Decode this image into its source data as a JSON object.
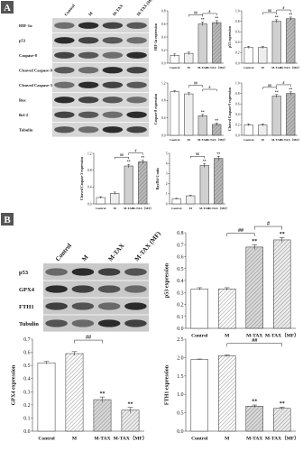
{
  "panel_labels": [
    "A",
    "B"
  ],
  "blots": [
    {
      "columns": [
        "Control",
        "M",
        "M-TAX",
        "M-TAX (MF)"
      ],
      "rows": [
        "HIF-1α",
        "p53",
        "Caspase-8",
        "Cleaved Caspase-9",
        "Cleaved Caspase-3",
        "Bax",
        "Bcl-2",
        "Tubulin"
      ]
    },
    {
      "columns": [
        "Control",
        "M",
        "M-TAX",
        "M-TAX (MF)"
      ],
      "rows": [
        "p53",
        "GPX4",
        "FTH1",
        "Tubulin"
      ]
    }
  ],
  "chart_data": [
    {
      "type": "bar",
      "ylabel": "HIF-1α expression",
      "categories": [
        "Control",
        "M",
        "M-TAX",
        "M-TAX（MF）"
      ],
      "values": [
        0.12,
        0.15,
        0.6,
        0.62
      ],
      "errors": [
        0.02,
        0.02,
        0.03,
        0.03
      ],
      "colors": [
        "#ffffff",
        "#eeeeee",
        "#d0d0d0",
        "#b8b8b8"
      ],
      "hatch": [
        false,
        false,
        false,
        true
      ],
      "ylim": [
        0,
        0.8
      ],
      "yticks": [
        {
          "value": 0,
          "label": "0.0"
        },
        {
          "value": 0.2,
          "label": "0.2"
        },
        {
          "value": 0.4,
          "label": "0.4"
        },
        {
          "value": 0.6,
          "label": "0.6"
        },
        {
          "value": 0.8,
          "label": "0.8"
        }
      ],
      "bar_labels": [
        null,
        null,
        "**",
        "**"
      ],
      "comparisons": [
        {
          "label": "##",
          "pair": [
            "M",
            "M-TAX"
          ]
        },
        {
          "label": "#",
          "pair": [
            "M-TAX",
            "M-TAX（MF）"
          ]
        }
      ]
    },
    {
      "type": "bar",
      "ylabel": "p53 expression",
      "categories": [
        "Control",
        "M",
        "M-TAX",
        "M-TAX（MF）"
      ],
      "values": [
        0.3,
        0.3,
        0.8,
        0.85
      ],
      "errors": [
        0.02,
        0.02,
        0.03,
        0.03
      ],
      "colors": [
        "#ffffff",
        "#eeeeee",
        "#d0d0d0",
        "#b8b8b8"
      ],
      "hatch": [
        false,
        false,
        false,
        true
      ],
      "ylim": [
        0,
        1
      ],
      "yticks": [
        {
          "value": 0,
          "label": "0.0"
        },
        {
          "value": 0.2,
          "label": "0.2"
        },
        {
          "value": 0.4,
          "label": "0.4"
        },
        {
          "value": 0.6,
          "label": "0.6"
        },
        {
          "value": 0.8,
          "label": "0.8"
        },
        {
          "value": 1,
          "label": "1.0"
        }
      ],
      "bar_labels": [
        null,
        null,
        "**",
        "**"
      ],
      "comparisons": [
        {
          "label": "##",
          "pair": [
            "M",
            "M-TAX"
          ]
        },
        {
          "label": "#",
          "pair": [
            "M-TAX",
            "M-TAX（MF）"
          ]
        }
      ]
    },
    {
      "type": "bar",
      "ylabel": "Caspase-8 expression",
      "categories": [
        "Control",
        "M",
        "M-TAX",
        "M-TAX（MF）"
      ],
      "values": [
        1,
        0.95,
        0.45,
        0.25
      ],
      "errors": [
        0.02,
        0.03,
        0.03,
        0.03
      ],
      "colors": [
        "#ffffff",
        "#eeeeee",
        "#d0d0d0",
        "#b8b8b8"
      ],
      "hatch": [
        false,
        false,
        false,
        true
      ],
      "ylim": [
        0,
        1.2
      ],
      "yticks": [
        {
          "value": 0,
          "label": "0.0"
        },
        {
          "value": 0.4,
          "label": "0.4"
        },
        {
          "value": 0.8,
          "label": "0.8"
        },
        {
          "value": 1.2,
          "label": "1.2"
        }
      ],
      "bar_labels": [
        null,
        null,
        "**",
        "**"
      ],
      "comparisons": [
        {
          "label": "##",
          "pair": [
            "M",
            "M-TAX"
          ]
        },
        {
          "label": "#",
          "pair": [
            "M-TAX",
            "M-TAX（MF）"
          ]
        }
      ]
    },
    {
      "type": "bar",
      "ylabel": "Cleaved Caspase-9 expression",
      "categories": [
        "Control",
        "M",
        "M-TAX",
        "M-TAX（MF）"
      ],
      "values": [
        0.2,
        0.2,
        0.75,
        0.8
      ],
      "errors": [
        0.02,
        0.02,
        0.03,
        0.03
      ],
      "colors": [
        "#ffffff",
        "#eeeeee",
        "#d0d0d0",
        "#b8b8b8"
      ],
      "hatch": [
        false,
        false,
        false,
        true
      ],
      "ylim": [
        0,
        1
      ],
      "yticks": [
        {
          "value": 0,
          "label": "0.0"
        },
        {
          "value": 0.2,
          "label": "0.2"
        },
        {
          "value": 0.4,
          "label": "0.4"
        },
        {
          "value": 0.6,
          "label": "0.6"
        },
        {
          "value": 0.8,
          "label": "0.8"
        },
        {
          "value": 1,
          "label": "1.0"
        }
      ],
      "bar_labels": [
        null,
        null,
        "**",
        "**"
      ],
      "comparisons": [
        {
          "label": "##",
          "pair": [
            "M",
            "M-TAX"
          ]
        },
        {
          "label": "#",
          "pair": [
            "M-TAX",
            "M-TAX（MF）"
          ]
        }
      ]
    },
    {
      "type": "bar",
      "ylabel": "Cleaved Caspase-3 expression",
      "categories": [
        "Control",
        "M",
        "M-TAX",
        "M-TAX（MF）"
      ],
      "values": [
        0.15,
        0.25,
        0.9,
        1
      ],
      "errors": [
        0.02,
        0.03,
        0.04,
        0.04
      ],
      "colors": [
        "#ffffff",
        "#eeeeee",
        "#d0d0d0",
        "#b8b8b8"
      ],
      "hatch": [
        false,
        false,
        false,
        true
      ],
      "ylim": [
        0,
        1.2
      ],
      "yticks": [
        {
          "value": 0,
          "label": "0.0"
        },
        {
          "value": 0.4,
          "label": "0.4"
        },
        {
          "value": 0.8,
          "label": "0.8"
        },
        {
          "value": 1.2,
          "label": "1.2"
        }
      ],
      "bar_labels": [
        null,
        null,
        "**",
        "**"
      ],
      "comparisons": [
        {
          "label": "##",
          "pair": [
            "M",
            "M-TAX"
          ]
        },
        {
          "label": "#",
          "pair": [
            "M-TAX",
            "M-TAX（MF）"
          ]
        }
      ]
    },
    {
      "type": "bar",
      "ylabel": "Bax/Bcl-2 ratio",
      "categories": [
        "Control",
        "M",
        "M-TAX",
        "M-TAX（MF）"
      ],
      "values": [
        0.5,
        0.8,
        3.8,
        4.5
      ],
      "errors": [
        0.05,
        0.05,
        0.2,
        0.2
      ],
      "colors": [
        "#ffffff",
        "#eeeeee",
        "#d0d0d0",
        "#b8b8b8"
      ],
      "hatch": [
        false,
        false,
        false,
        true
      ],
      "ylim": [
        0,
        5
      ],
      "yticks": [
        0,
        1,
        2,
        3,
        4,
        5
      ],
      "bar_labels": [
        null,
        null,
        "**",
        "**"
      ],
      "comparisons": [
        {
          "label": "##",
          "pair": [
            "M",
            "M-TAX"
          ]
        }
      ]
    },
    {
      "type": "bar",
      "ylabel": "p53 expression",
      "categories": [
        "Control",
        "M",
        "M-TAX",
        "M-TAX（MF）"
      ],
      "values": [
        0.33,
        0.33,
        0.68,
        0.74
      ],
      "errors": [
        0.01,
        0.01,
        0.02,
        0.02
      ],
      "colors": [
        "#ffffff",
        "#ffffff",
        "#d8d8d8",
        "#ececec"
      ],
      "hatch": [
        false,
        true,
        true,
        true
      ],
      "ylim": [
        0,
        0.8
      ],
      "yticks": [
        {
          "value": 0,
          "label": "0.0"
        },
        {
          "value": 0.1,
          "label": "0.1"
        },
        {
          "value": 0.2,
          "label": "0.2"
        },
        {
          "value": 0.3,
          "label": "0.3"
        },
        {
          "value": 0.4,
          "label": "0.4"
        },
        {
          "value": 0.5,
          "label": "0.5"
        },
        {
          "value": 0.6,
          "label": "0.6"
        },
        {
          "value": 0.7,
          "label": "0.7"
        },
        {
          "value": 0.8,
          "label": "0.8"
        }
      ],
      "bar_labels": [
        null,
        null,
        "**",
        "**"
      ],
      "comparisons": [
        {
          "label": "##",
          "pair": [
            "M",
            "M-TAX"
          ]
        },
        {
          "label": "#",
          "pair": [
            "M-TAX",
            "M-TAX（MF）"
          ]
        }
      ]
    },
    {
      "type": "bar",
      "ylabel": "GPX4 expression",
      "categories": [
        "Control",
        "M",
        "M-TAX",
        "M-TAX（MF）"
      ],
      "values": [
        0.52,
        0.59,
        0.24,
        0.16
      ],
      "errors": [
        0.01,
        0.015,
        0.02,
        0.02
      ],
      "colors": [
        "#ffffff",
        "#ffffff",
        "#d8d8d8",
        "#ececec"
      ],
      "hatch": [
        false,
        true,
        true,
        true
      ],
      "ylim": [
        0,
        0.7
      ],
      "yticks": [
        {
          "value": 0,
          "label": "0.0"
        },
        {
          "value": 0.1,
          "label": "0.1"
        },
        {
          "value": 0.2,
          "label": "0.2"
        },
        {
          "value": 0.3,
          "label": "0.3"
        },
        {
          "value": 0.4,
          "label": "0.4"
        },
        {
          "value": 0.5,
          "label": "0.5"
        },
        {
          "value": 0.6,
          "label": "0.6"
        },
        {
          "value": 0.7,
          "label": "0.7"
        }
      ],
      "bar_labels": [
        null,
        null,
        "**",
        "**"
      ],
      "comparisons": [
        {
          "label": "##",
          "pair": [
            "M",
            "M-TAX"
          ]
        }
      ]
    },
    {
      "type": "bar",
      "ylabel": "FTH1 expression",
      "categories": [
        "Control",
        "M",
        "M-TAX",
        "M-TAX（MF）"
      ],
      "values": [
        1.95,
        2.05,
        0.68,
        0.62
      ],
      "errors": [
        0.01,
        0.02,
        0.03,
        0.03
      ],
      "colors": [
        "#ffffff",
        "#ffffff",
        "#d8d8d8",
        "#ececec"
      ],
      "hatch": [
        false,
        true,
        true,
        true
      ],
      "ylim": [
        0,
        2.5
      ],
      "yticks": [
        {
          "value": 0,
          "label": "0.0"
        },
        {
          "value": 0.5,
          "label": "0.5"
        },
        {
          "value": 1,
          "label": "1.0"
        },
        {
          "value": 1.5,
          "label": "1.5"
        },
        {
          "value": 2,
          "label": "2.0"
        },
        {
          "value": 2.5,
          "label": "2.5"
        }
      ],
      "bar_labels": [
        null,
        null,
        "**",
        "**"
      ],
      "comparisons": [
        {
          "label": "##",
          "pair": [
            "M",
            "M-TAX（MF）"
          ]
        }
      ]
    }
  ]
}
